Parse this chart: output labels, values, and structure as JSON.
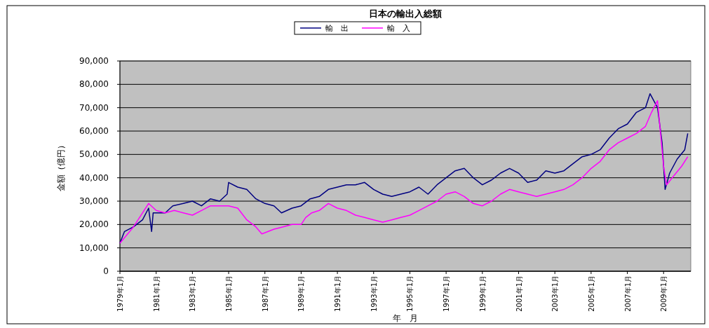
{
  "chart_data": {
    "type": "line",
    "title": "日本の輸出入総額",
    "xlabel": "年　月",
    "ylabel": "金額（億円）",
    "legend": "top",
    "grid": "y",
    "ylim": [
      0,
      90000
    ],
    "yticks": [
      {
        "value": 0,
        "label": "0"
      },
      {
        "value": 10000,
        "label": "10,000"
      },
      {
        "value": 20000,
        "label": "20,000"
      },
      {
        "value": 30000,
        "label": "30,000"
      },
      {
        "value": 40000,
        "label": "40,000"
      },
      {
        "value": 50000,
        "label": "50,000"
      },
      {
        "value": 60000,
        "label": "60,000"
      },
      {
        "value": 70000,
        "label": "70,000"
      },
      {
        "value": 80000,
        "label": "80,000"
      },
      {
        "value": 90000,
        "label": "90,000"
      }
    ],
    "xlim": [
      "1979-01",
      "2010-07"
    ],
    "xticks": [
      {
        "value": "1979-01",
        "label": "1979年1月"
      },
      {
        "value": "1981-01",
        "label": "1981年1月"
      },
      {
        "value": "1983-01",
        "label": "1983年1月"
      },
      {
        "value": "1985-01",
        "label": "1985年1月"
      },
      {
        "value": "1987-01",
        "label": "1987年1月"
      },
      {
        "value": "1989-01",
        "label": "1989年1月"
      },
      {
        "value": "1991-01",
        "label": "1991年1月"
      },
      {
        "value": "1993-01",
        "label": "1993年1月"
      },
      {
        "value": "1995-01",
        "label": "1995年1月"
      },
      {
        "value": "1997-01",
        "label": "1997年1月"
      },
      {
        "value": "1999-01",
        "label": "1999年1月"
      },
      {
        "value": "2001-01",
        "label": "2001年1月"
      },
      {
        "value": "2003-01",
        "label": "2003年1月"
      },
      {
        "value": "2005-01",
        "label": "2005年1月"
      },
      {
        "value": "2007-01",
        "label": "2007年1月"
      },
      {
        "value": "2009-01",
        "label": "2009年1月"
      }
    ],
    "series": [
      {
        "name": "輸　出",
        "color": "#000080",
        "x": [
          "1979-01",
          "1979-04",
          "1979-10",
          "1980-04",
          "1980-08",
          "1980-10",
          "1980-11",
          "1981-07",
          "1981-12",
          "1982-07",
          "1983-01",
          "1983-07",
          "1984-01",
          "1984-07",
          "1984-12",
          "1985-01",
          "1985-07",
          "1986-01",
          "1986-07",
          "1987-01",
          "1987-07",
          "1987-12",
          "1988-07",
          "1989-01",
          "1989-07",
          "1990-01",
          "1990-07",
          "1991-01",
          "1991-07",
          "1992-01",
          "1992-07",
          "1993-01",
          "1993-07",
          "1994-01",
          "1994-07",
          "1995-01",
          "1995-07",
          "1996-01",
          "1996-07",
          "1997-01",
          "1997-07",
          "1998-01",
          "1998-07",
          "1999-01",
          "1999-07",
          "2000-01",
          "2000-07",
          "2001-01",
          "2001-07",
          "2002-01",
          "2002-07",
          "2003-01",
          "2003-07",
          "2004-01",
          "2004-07",
          "2005-01",
          "2005-07",
          "2006-01",
          "2006-07",
          "2007-01",
          "2007-07",
          "2008-01",
          "2008-04",
          "2008-09",
          "2008-12",
          "2009-02",
          "2009-05",
          "2009-10",
          "2010-03",
          "2010-05"
        ],
        "values": [
          12000,
          17000,
          19000,
          22000,
          27000,
          17000,
          25000,
          25000,
          28000,
          29000,
          30000,
          28000,
          31000,
          30000,
          33000,
          38000,
          36000,
          35000,
          31000,
          29000,
          28000,
          25000,
          27000,
          28000,
          31000,
          32000,
          35000,
          36000,
          37000,
          37000,
          38000,
          35000,
          33000,
          32000,
          33000,
          34000,
          36000,
          33000,
          37000,
          40000,
          43000,
          44000,
          40000,
          37000,
          39000,
          42000,
          44000,
          42000,
          38000,
          39000,
          43000,
          42000,
          43000,
          46000,
          49000,
          50000,
          52000,
          57000,
          61000,
          63000,
          68000,
          70000,
          76000,
          70000,
          55000,
          35000,
          42000,
          48000,
          52000,
          59000
        ]
      },
      {
        "name": "輸　入",
        "color": "#ff00ff",
        "x": [
          "1979-01",
          "1979-10",
          "1980-04",
          "1980-08",
          "1981-01",
          "1981-07",
          "1982-01",
          "1982-07",
          "1983-01",
          "1983-07",
          "1984-01",
          "1984-07",
          "1985-01",
          "1985-07",
          "1986-01",
          "1986-07",
          "1986-11",
          "1987-07",
          "1988-01",
          "1988-07",
          "1989-01",
          "1989-04",
          "1989-08",
          "1990-01",
          "1990-07",
          "1991-01",
          "1991-07",
          "1992-01",
          "1992-07",
          "1993-01",
          "1993-07",
          "1994-01",
          "1994-07",
          "1995-01",
          "1995-07",
          "1996-01",
          "1996-07",
          "1997-01",
          "1997-07",
          "1998-01",
          "1998-07",
          "1999-01",
          "1999-07",
          "2000-01",
          "2000-07",
          "2001-01",
          "2001-07",
          "2002-01",
          "2002-07",
          "2003-01",
          "2003-07",
          "2004-01",
          "2004-07",
          "2005-01",
          "2005-07",
          "2006-01",
          "2006-07",
          "2007-01",
          "2007-07",
          "2008-01",
          "2008-05",
          "2008-09",
          "2009-01",
          "2009-03",
          "2009-08",
          "2010-01",
          "2010-05"
        ],
        "values": [
          12000,
          19000,
          25000,
          29000,
          26000,
          25000,
          26000,
          25000,
          24000,
          26000,
          28000,
          28000,
          28000,
          27000,
          22000,
          19000,
          16000,
          18000,
          19000,
          20000,
          20000,
          23000,
          25000,
          26000,
          29000,
          27000,
          26000,
          24000,
          23000,
          22000,
          21000,
          22000,
          23000,
          24000,
          26000,
          28000,
          30000,
          33000,
          34000,
          32000,
          29000,
          28000,
          30000,
          33000,
          35000,
          34000,
          33000,
          32000,
          33000,
          34000,
          35000,
          37000,
          40000,
          44000,
          47000,
          52000,
          55000,
          57000,
          59000,
          62000,
          68000,
          73000,
          45000,
          37000,
          41000,
          45000,
          49000
        ]
      }
    ]
  }
}
